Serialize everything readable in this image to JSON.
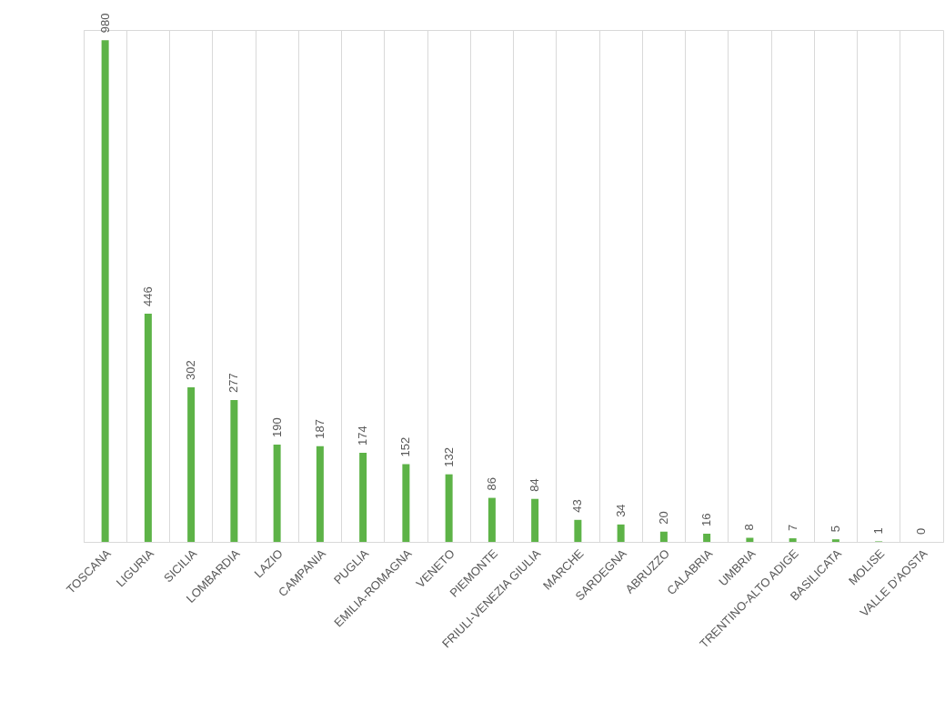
{
  "chart_data": {
    "type": "bar",
    "categories": [
      "TOSCANA",
      "LIGURIA",
      "SICILIA",
      "LOMBARDIA",
      "LAZIO",
      "CAMPANIA",
      "PUGLIA",
      "EMILIA-ROMAGNA",
      "VENETO",
      "PIEMONTE",
      "FRIULI-VENEZIA GIULIA",
      "MARCHE",
      "SARDEGNA",
      "ABRUZZO",
      "CALABRIA",
      "UMBRIA",
      "TRENTINO-ALTO ADIGE",
      "BASILICATA",
      "MOLISE",
      "VALLE D'AOSTA"
    ],
    "values": [
      980,
      446,
      302,
      277,
      190,
      187,
      174,
      152,
      132,
      86,
      84,
      43,
      34,
      20,
      16,
      8,
      7,
      5,
      1,
      0
    ],
    "color": "#5db347",
    "data_labels": true,
    "grid": "x",
    "tick_labels": "x"
  }
}
